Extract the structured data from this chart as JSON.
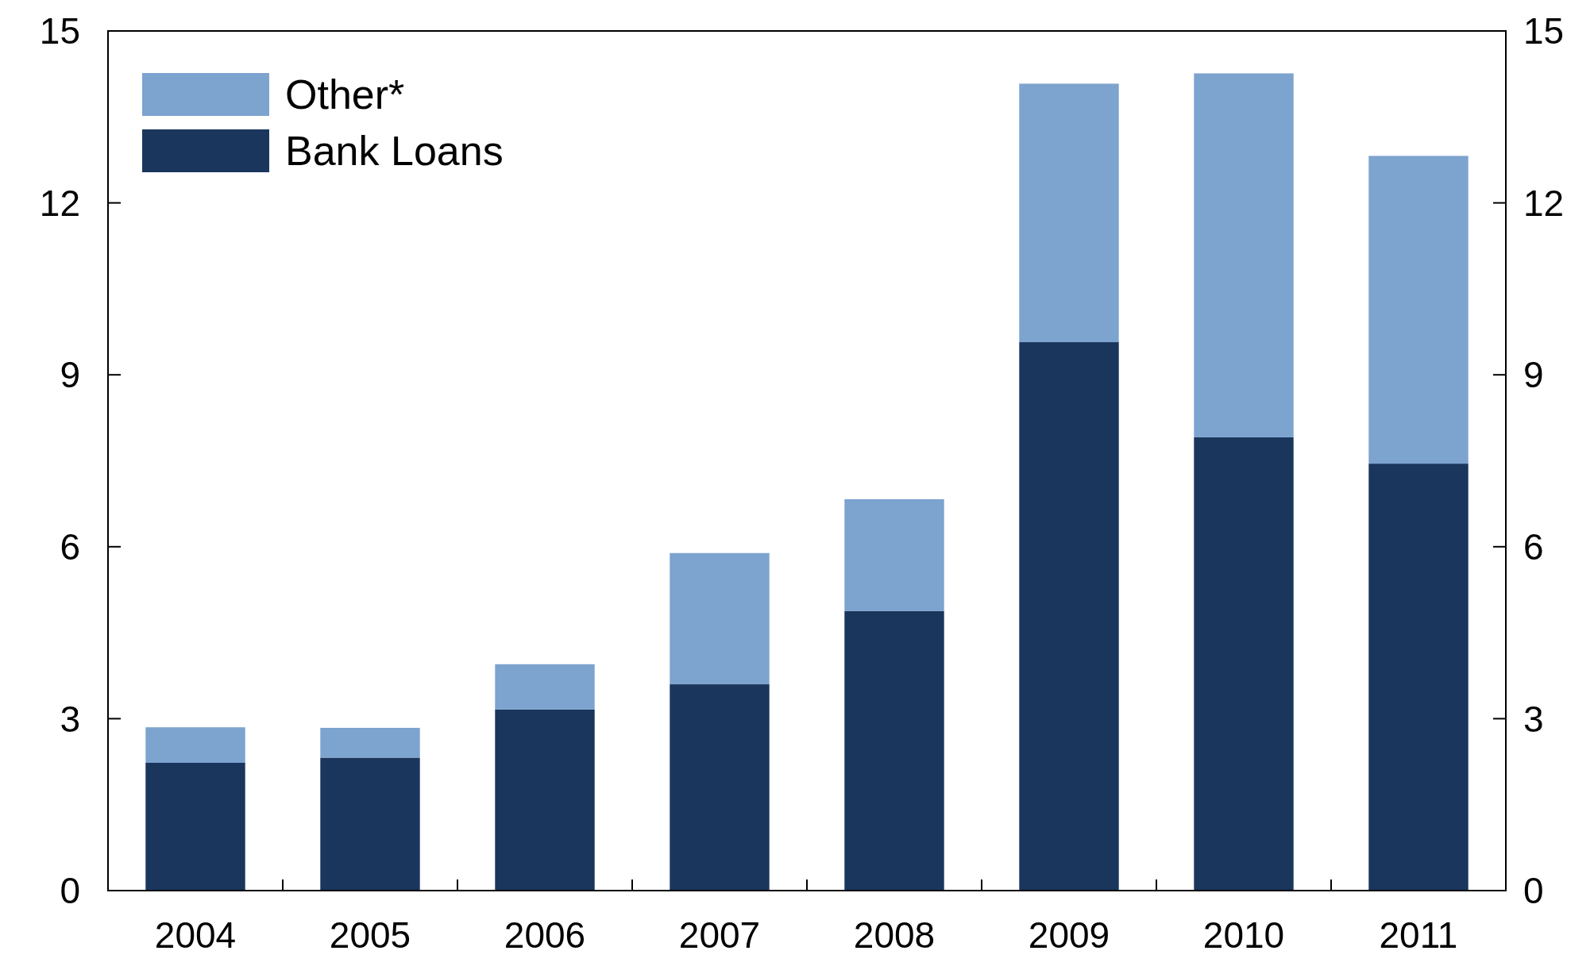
{
  "chart_data": {
    "type": "bar",
    "stacked": true,
    "categories": [
      "2004",
      "2005",
      "2006",
      "2007",
      "2008",
      "2009",
      "2010",
      "2011"
    ],
    "series": [
      {
        "name": "Bank Loans",
        "color": "#1a365d",
        "values": [
          2.23,
          2.32,
          3.16,
          3.6,
          4.88,
          9.57,
          7.91,
          7.45
        ]
      },
      {
        "name": "Other*",
        "color": "#7da3cf",
        "values": [
          0.62,
          0.52,
          0.79,
          2.29,
          1.95,
          4.51,
          6.35,
          5.37
        ]
      }
    ],
    "ylim": [
      0,
      15
    ],
    "yticks": [
      0,
      3,
      6,
      9,
      12,
      15
    ],
    "y2lim": [
      0,
      15
    ],
    "y2ticks": [
      0,
      3,
      6,
      9,
      12,
      15
    ],
    "legend": "top left",
    "grid": false
  }
}
